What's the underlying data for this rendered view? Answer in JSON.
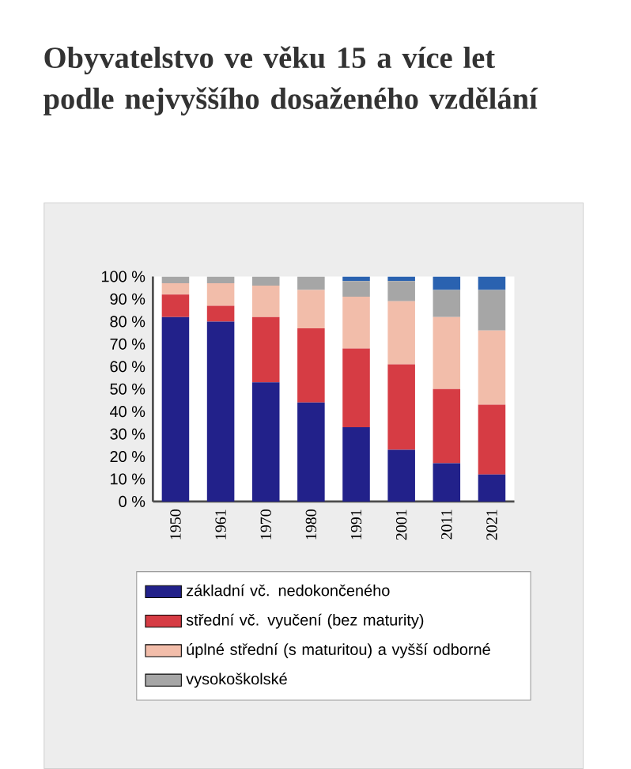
{
  "chart_data": {
    "type": "bar",
    "stacked": true,
    "title": "Obyvatelstvo ve věku 15 a více let podle nejvyššího dosaženého vzdělání",
    "categories": [
      "1950",
      "1961",
      "1970",
      "1980",
      "1991",
      "2001",
      "2011",
      "2021"
    ],
    "series": [
      {
        "name": "základní vč. nedokončeného",
        "color": "#22218a",
        "values": [
          82,
          80,
          53,
          44,
          33,
          23,
          17,
          12
        ]
      },
      {
        "name": "střední vč. vyučení (bez maturity)",
        "color": "#d63c44",
        "values": [
          10,
          7,
          29,
          33,
          35,
          38,
          33,
          31
        ]
      },
      {
        "name": "úplné střední (s maturitou) a vyšší odborné",
        "color": "#f2bdaa",
        "values": [
          5,
          10,
          14,
          17,
          23,
          28,
          32,
          33
        ]
      },
      {
        "name": "vysokoškolské",
        "color": "#a6a6a6",
        "values": [
          3,
          3,
          4,
          6,
          7,
          9,
          12,
          18
        ]
      },
      {
        "color": "#2a62b0",
        "values": [
          0,
          0,
          0,
          0,
          2,
          2,
          6,
          6
        ]
      }
    ],
    "ylim": [
      0,
      100
    ],
    "yticks": [
      {
        "value": 0,
        "label": "0 %"
      },
      {
        "value": 10,
        "label": "10 %"
      },
      {
        "value": 20,
        "label": "20 %"
      },
      {
        "value": 30,
        "label": "30 %"
      },
      {
        "value": 40,
        "label": "40 %"
      },
      {
        "value": 50,
        "label": "50 %"
      },
      {
        "value": 60,
        "label": "60 %"
      },
      {
        "value": 70,
        "label": "70 %"
      },
      {
        "value": 80,
        "label": "80 %"
      },
      {
        "value": 90,
        "label": "90 %"
      },
      {
        "value": 100,
        "label": "100 %"
      }
    ],
    "grid": false,
    "legend": "bottom"
  }
}
